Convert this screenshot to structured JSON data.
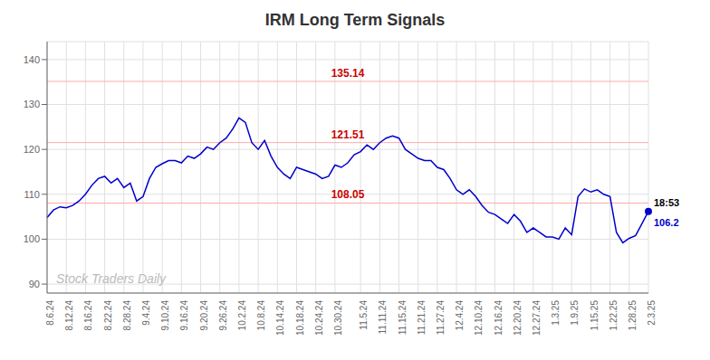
{
  "chart_data": {
    "type": "line",
    "title": "IRM Long Term Signals",
    "categories": [
      "8.6.24",
      null,
      null,
      "8.12.24",
      null,
      null,
      "8.16.24",
      null,
      null,
      "8.22.24",
      null,
      null,
      "8.28.24",
      null,
      null,
      "9.4.24",
      null,
      null,
      "9.10.24",
      null,
      null,
      "9.16.24",
      null,
      null,
      "9.20.24",
      null,
      null,
      "9.26.24",
      null,
      null,
      "10.2.24",
      null,
      null,
      "10.8.24",
      null,
      null,
      "10.14.24",
      null,
      null,
      "10.18.24",
      null,
      null,
      "10.24.24",
      null,
      null,
      "10.30.24",
      null,
      null,
      null,
      "11.5.24",
      null,
      null,
      "11.11.24",
      null,
      null,
      "11.15.24",
      null,
      null,
      "11.21.24",
      null,
      null,
      "11.27.24",
      null,
      null,
      "12.4.24",
      null,
      null,
      "12.10.24",
      null,
      null,
      "12.16.24",
      null,
      null,
      "12.20.24",
      null,
      null,
      "12.27.24",
      null,
      null,
      "1.3.25",
      null,
      null,
      "1.9.25",
      null,
      null,
      "1.15.25",
      null,
      null,
      "1.22.25",
      null,
      null,
      "1.28.25",
      null,
      null,
      "2.3.25"
    ],
    "values": [
      104.8,
      106.5,
      107.2,
      107.0,
      107.5,
      108.5,
      110.0,
      112.0,
      113.5,
      114.0,
      112.5,
      113.5,
      111.5,
      112.5,
      108.5,
      109.5,
      113.5,
      116.0,
      116.8,
      117.5,
      117.5,
      117.0,
      118.5,
      118.0,
      119.0,
      120.5,
      120.0,
      121.5,
      122.5,
      124.5,
      127.0,
      126.0,
      121.5,
      120.0,
      122.0,
      118.5,
      116.0,
      114.5,
      113.5,
      116.0,
      115.5,
      115.0,
      114.5,
      113.5,
      114.0,
      116.5,
      116.0,
      117.0,
      118.8,
      119.5,
      121.0,
      120.0,
      121.5,
      122.5,
      123.0,
      122.5,
      120.0,
      119.0,
      118.0,
      117.5,
      117.5,
      116.0,
      115.5,
      113.5,
      111.0,
      110.0,
      111.0,
      109.5,
      107.5,
      106.0,
      105.5,
      104.5,
      103.5,
      105.5,
      104.0,
      101.5,
      102.5,
      101.5,
      100.5,
      100.5,
      100.0,
      102.5,
      101.0,
      109.5,
      111.2,
      110.5,
      111.0,
      110.0,
      109.5,
      101.5,
      99.2,
      100.2,
      100.8,
      103.5,
      106.2
    ],
    "color": "#0000cc",
    "ylim": [
      88,
      144
    ],
    "yticks": [
      90,
      100,
      110,
      120,
      130,
      140
    ],
    "grid": true,
    "hlines": {
      "values": [
        135.14,
        121.51,
        108.05
      ],
      "color": "#ffaaaa",
      "label_color": "#cc0000"
    },
    "annotation": {
      "value": 106.2,
      "label": "18:53",
      "color": "#0000cc"
    },
    "watermark": {
      "text": "Stock Traders Daily",
      "color": "#bbbbbb"
    }
  }
}
